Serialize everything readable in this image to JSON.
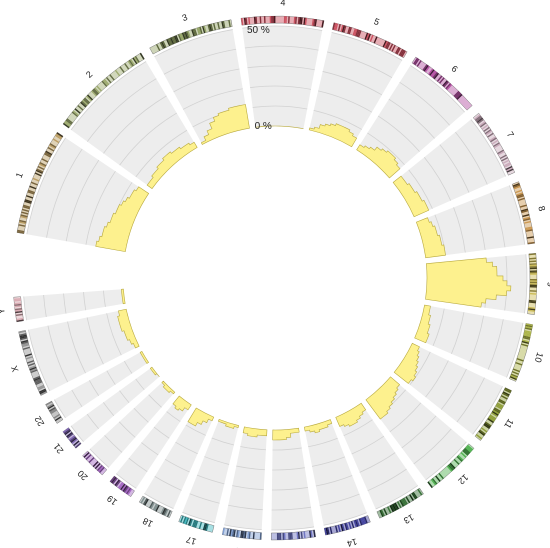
{
  "scale": {
    "min_label": "0 %",
    "max_label": "50 %",
    "min": 0,
    "max": 50,
    "rings": 5
  },
  "colors": {
    "track_bg": "#ededed",
    "grid": "#d2d2d2",
    "histogram_fill": "#fdf18e",
    "histogram_stroke": "#b8a93e"
  },
  "chromosomes": [
    {
      "label": "1",
      "size": 249,
      "band_color": "#b89a5e",
      "values": [
        15,
        14,
        13,
        13,
        12,
        11,
        11,
        10,
        10,
        9,
        8,
        7,
        7,
        6
      ]
    },
    {
      "label": "2",
      "size": 243,
      "band_color": "#9aa86a",
      "values": [
        3,
        3,
        4,
        4,
        5,
        5,
        6,
        6,
        5,
        5,
        4,
        4,
        3
      ]
    },
    {
      "label": "3",
      "size": 198,
      "band_color": "#8fa060",
      "values": [
        1,
        3,
        5,
        8,
        10,
        11,
        11,
        12,
        12,
        12
      ]
    },
    {
      "label": "4",
      "size": 191,
      "band_color": "#c94a5a",
      "values": [
        0,
        0,
        0,
        0,
        0,
        0,
        0,
        0,
        0,
        0
      ]
    },
    {
      "label": "5",
      "size": 181,
      "band_color": "#c94a5a",
      "values": [
        1,
        2,
        4,
        5,
        6,
        7,
        7,
        7,
        6,
        5
      ]
    },
    {
      "label": "6",
      "size": 171,
      "band_color": "#b24aa0",
      "values": [
        3,
        4,
        5,
        7,
        8,
        9,
        9,
        8,
        7
      ]
    },
    {
      "label": "7",
      "size": 159,
      "band_color": "#c8a8b8",
      "values": [
        5,
        5,
        6,
        6,
        7,
        7,
        8,
        8
      ]
    },
    {
      "label": "8",
      "size": 146,
      "band_color": "#c9944a",
      "values": [
        6,
        7,
        8,
        8,
        9,
        9,
        10,
        10
      ]
    },
    {
      "label": "9",
      "size": 141,
      "band_color": "#c9b850",
      "values": [
        30,
        33,
        35,
        35,
        38,
        40,
        42,
        40,
        35,
        30,
        28
      ]
    },
    {
      "label": "10",
      "size": 136,
      "band_color": "#a8b040",
      "values": [
        3,
        3,
        4,
        4,
        5,
        5,
        6,
        6
      ]
    },
    {
      "label": "11",
      "size": 135,
      "band_color": "#8a9a30",
      "values": [
        4,
        5,
        6,
        7,
        8,
        9,
        10,
        9
      ]
    },
    {
      "label": "12",
      "size": 133,
      "band_color": "#4ab04a",
      "values": [
        6,
        7,
        8,
        9,
        10,
        11,
        12,
        12
      ]
    },
    {
      "label": "13",
      "size": 115,
      "band_color": "#2e6a2e",
      "values": [
        4,
        5,
        6,
        7,
        7,
        6,
        5
      ]
    },
    {
      "label": "14",
      "size": 107,
      "band_color": "#3a3a9a",
      "values": [
        2,
        3,
        3,
        4,
        3,
        2
      ]
    },
    {
      "label": "15",
      "size": 102,
      "band_color": "#6a70c0",
      "values": [
        2,
        2,
        4,
        5,
        5,
        5
      ]
    },
    {
      "label": "16",
      "size": 90,
      "band_color": "#7a9ad0",
      "values": [
        3,
        3,
        4,
        4,
        3
      ]
    },
    {
      "label": "17",
      "size": 81,
      "band_color": "#3ab8c0",
      "values": [
        1,
        2,
        2,
        1,
        1
      ]
    },
    {
      "label": "18",
      "size": 78,
      "band_color": "#7a8a8a",
      "values": [
        2,
        4,
        6,
        8,
        8
      ]
    },
    {
      "label": "19",
      "size": 59,
      "band_color": "#a060c0",
      "values": [
        3,
        5,
        6,
        5
      ]
    },
    {
      "label": "20",
      "size": 63,
      "band_color": "#a060c0",
      "values": [
        1,
        2,
        2,
        1
      ]
    },
    {
      "label": "21",
      "size": 48,
      "band_color": "#7a60b0",
      "values": [
        0,
        1,
        1
      ]
    },
    {
      "label": "22",
      "size": 51,
      "band_color": "#808080",
      "values": [
        1,
        1,
        1
      ]
    },
    {
      "label": "X",
      "size": 155,
      "band_color": "#909090",
      "values": [
        2,
        3,
        4,
        4,
        5,
        5,
        5,
        4
      ]
    },
    {
      "label": "Y",
      "size": 57,
      "band_color": "#d8a8b0",
      "values": [
        1,
        1,
        1
      ]
    }
  ]
}
